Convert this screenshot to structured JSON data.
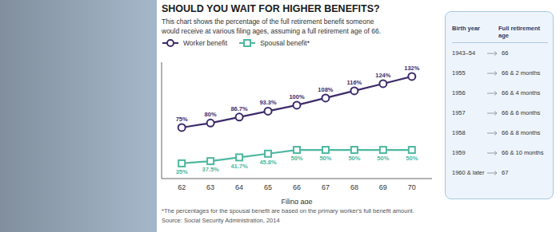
{
  "chart_data": {
    "type": "line",
    "title": "SHOULD YOU WAIT FOR HIGHER BENEFITS?",
    "subtitle": "This chart shows the percentage of the full retirement benefit someone\nwould receive at various filing ages, assuming a full retirement age of 66.",
    "x_label": "Filing age",
    "x": [
      62,
      63,
      64,
      65,
      66,
      67,
      68,
      69,
      70
    ],
    "xlim": [
      61.3,
      70.7
    ],
    "xticks": [
      62,
      63,
      64,
      65,
      66,
      67,
      68,
      69,
      70
    ],
    "ylim": [
      18,
      148
    ],
    "yticks": [],
    "tick_labels": "x",
    "data_labels": true,
    "legend": "upper left",
    "series": [
      {
        "name": "Worker benefit",
        "color": "#3d2b6b",
        "marker": "circle",
        "values": [
          75,
          80,
          86.7,
          93.3,
          100,
          108,
          116,
          124,
          132
        ],
        "value_labels": [
          "75%",
          "80%",
          "86.7%",
          "93.3%",
          "100%",
          "108%",
          "116%",
          "124%",
          "132%"
        ]
      },
      {
        "name": "Spousal benefit*",
        "color": "#4db8a0",
        "marker": "square",
        "values": [
          35,
          37.5,
          41.7,
          45.8,
          50,
          50,
          50,
          50,
          50
        ],
        "value_labels": [
          "35%",
          "37.5%",
          "41.7%",
          "45.8%",
          "50%",
          "50%",
          "50%",
          "50%",
          "50%"
        ]
      }
    ],
    "annotations": [
      "*The percentages for the spousal benefit are based on the primary worker's full benefit amount.",
      "Source: Social Security Administration, 2014"
    ],
    "table": {
      "columns": [
        "Birth year",
        "Full retirement age"
      ],
      "rows": [
        [
          "1943–54",
          "66"
        ],
        [
          "1955",
          "66 & 2 months"
        ],
        [
          "1956",
          "66 & 4 months"
        ],
        [
          "1957",
          "66 & 6 months"
        ],
        [
          "1958",
          "66 & 8 months"
        ],
        [
          "1959",
          "66 & 10 months"
        ],
        [
          "1960 & later",
          "67"
        ]
      ]
    }
  }
}
